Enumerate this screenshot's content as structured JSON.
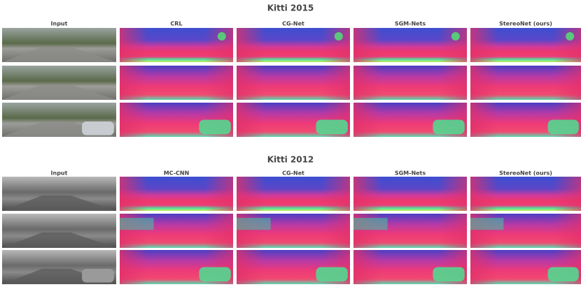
{
  "sections": [
    {
      "title": "Kitti 2015",
      "columns": [
        "Input",
        "CRL",
        "CG-Net",
        "SGM-Nets",
        "StereoNet (ours)"
      ]
    },
    {
      "title": "Kitti 2012",
      "columns": [
        "Input",
        "MC-CNN",
        "CG-Net",
        "SGM-Nets",
        "StereoNet (ours)"
      ]
    }
  ]
}
